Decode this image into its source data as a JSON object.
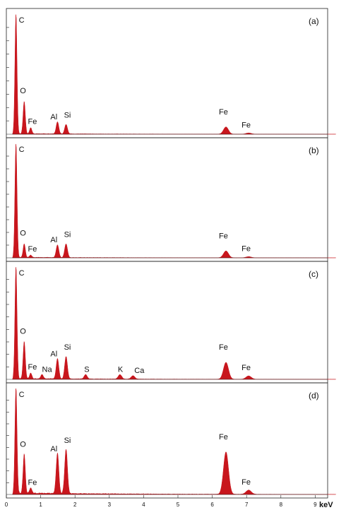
{
  "chart_data": {
    "type": "area",
    "xlabel": "keV",
    "xlim": [
      0,
      10
    ],
    "x_ticks": [
      "0",
      "1",
      "2",
      "3",
      "4",
      "5",
      "6",
      "7",
      "8",
      "9"
    ],
    "color": "#c8161d",
    "panels": [
      {
        "tag": "(a)",
        "peaks": [
          {
            "element": "C",
            "energy": 0.28,
            "height": 1.0,
            "label": "C"
          },
          {
            "element": "O",
            "energy": 0.52,
            "height": 0.27,
            "label": "O"
          },
          {
            "element": "Fe",
            "energy": 0.71,
            "height": 0.05,
            "label": "Fe"
          },
          {
            "element": "Al",
            "energy": 1.49,
            "height": 0.1,
            "label": "Al"
          },
          {
            "element": "Si",
            "energy": 1.74,
            "height": 0.08,
            "label": "Si"
          },
          {
            "element": "Fe",
            "energy": 6.4,
            "height": 0.06,
            "label": "Fe"
          },
          {
            "element": "Fe",
            "energy": 7.06,
            "height": 0.01,
            "label": "Fe"
          }
        ]
      },
      {
        "tag": "(b)",
        "peaks": [
          {
            "element": "C",
            "energy": 0.28,
            "height": 1.0,
            "label": "C"
          },
          {
            "element": "O",
            "energy": 0.52,
            "height": 0.12,
            "label": "O"
          },
          {
            "element": "Fe",
            "energy": 0.71,
            "height": 0.02,
            "label": "Fe"
          },
          {
            "element": "Al",
            "energy": 1.49,
            "height": 0.11,
            "label": "Al"
          },
          {
            "element": "Si",
            "energy": 1.74,
            "height": 0.12,
            "label": "Si"
          },
          {
            "element": "Fe",
            "energy": 6.4,
            "height": 0.06,
            "label": "Fe"
          },
          {
            "element": "Fe",
            "energy": 7.06,
            "height": 0.01,
            "label": "Fe"
          }
        ]
      },
      {
        "tag": "(c)",
        "peaks": [
          {
            "element": "C",
            "energy": 0.28,
            "height": 1.0,
            "label": "C"
          },
          {
            "element": "O",
            "energy": 0.52,
            "height": 0.33,
            "label": "O"
          },
          {
            "element": "Fe",
            "energy": 0.71,
            "height": 0.05,
            "label": "Fe"
          },
          {
            "element": "Na",
            "energy": 1.04,
            "height": 0.04,
            "label": "Na"
          },
          {
            "element": "Al",
            "energy": 1.49,
            "height": 0.18,
            "label": "Al"
          },
          {
            "element": "Si",
            "energy": 1.74,
            "height": 0.2,
            "label": "Si"
          },
          {
            "element": "S",
            "energy": 2.31,
            "height": 0.04,
            "label": "S"
          },
          {
            "element": "K",
            "energy": 3.31,
            "height": 0.04,
            "label": "K"
          },
          {
            "element": "Ca",
            "energy": 3.69,
            "height": 0.03,
            "label": "Ca"
          },
          {
            "element": "Fe",
            "energy": 6.4,
            "height": 0.15,
            "label": "Fe"
          },
          {
            "element": "Fe",
            "energy": 7.06,
            "height": 0.03,
            "label": "Fe"
          }
        ]
      },
      {
        "tag": "(d)",
        "peaks": [
          {
            "element": "C",
            "energy": 0.28,
            "height": 1.0,
            "label": "C"
          },
          {
            "element": "O",
            "energy": 0.52,
            "height": 0.37,
            "label": "O"
          },
          {
            "element": "Fe",
            "energy": 0.71,
            "height": 0.05,
            "label": "Fe"
          },
          {
            "element": "Al",
            "energy": 1.49,
            "height": 0.38,
            "label": "Al"
          },
          {
            "element": "Si",
            "energy": 1.74,
            "height": 0.42,
            "label": "Si"
          },
          {
            "element": "Fe",
            "energy": 6.4,
            "height": 0.4,
            "label": "Fe"
          },
          {
            "element": "Fe",
            "energy": 7.06,
            "height": 0.04,
            "label": "Fe"
          }
        ]
      }
    ]
  }
}
